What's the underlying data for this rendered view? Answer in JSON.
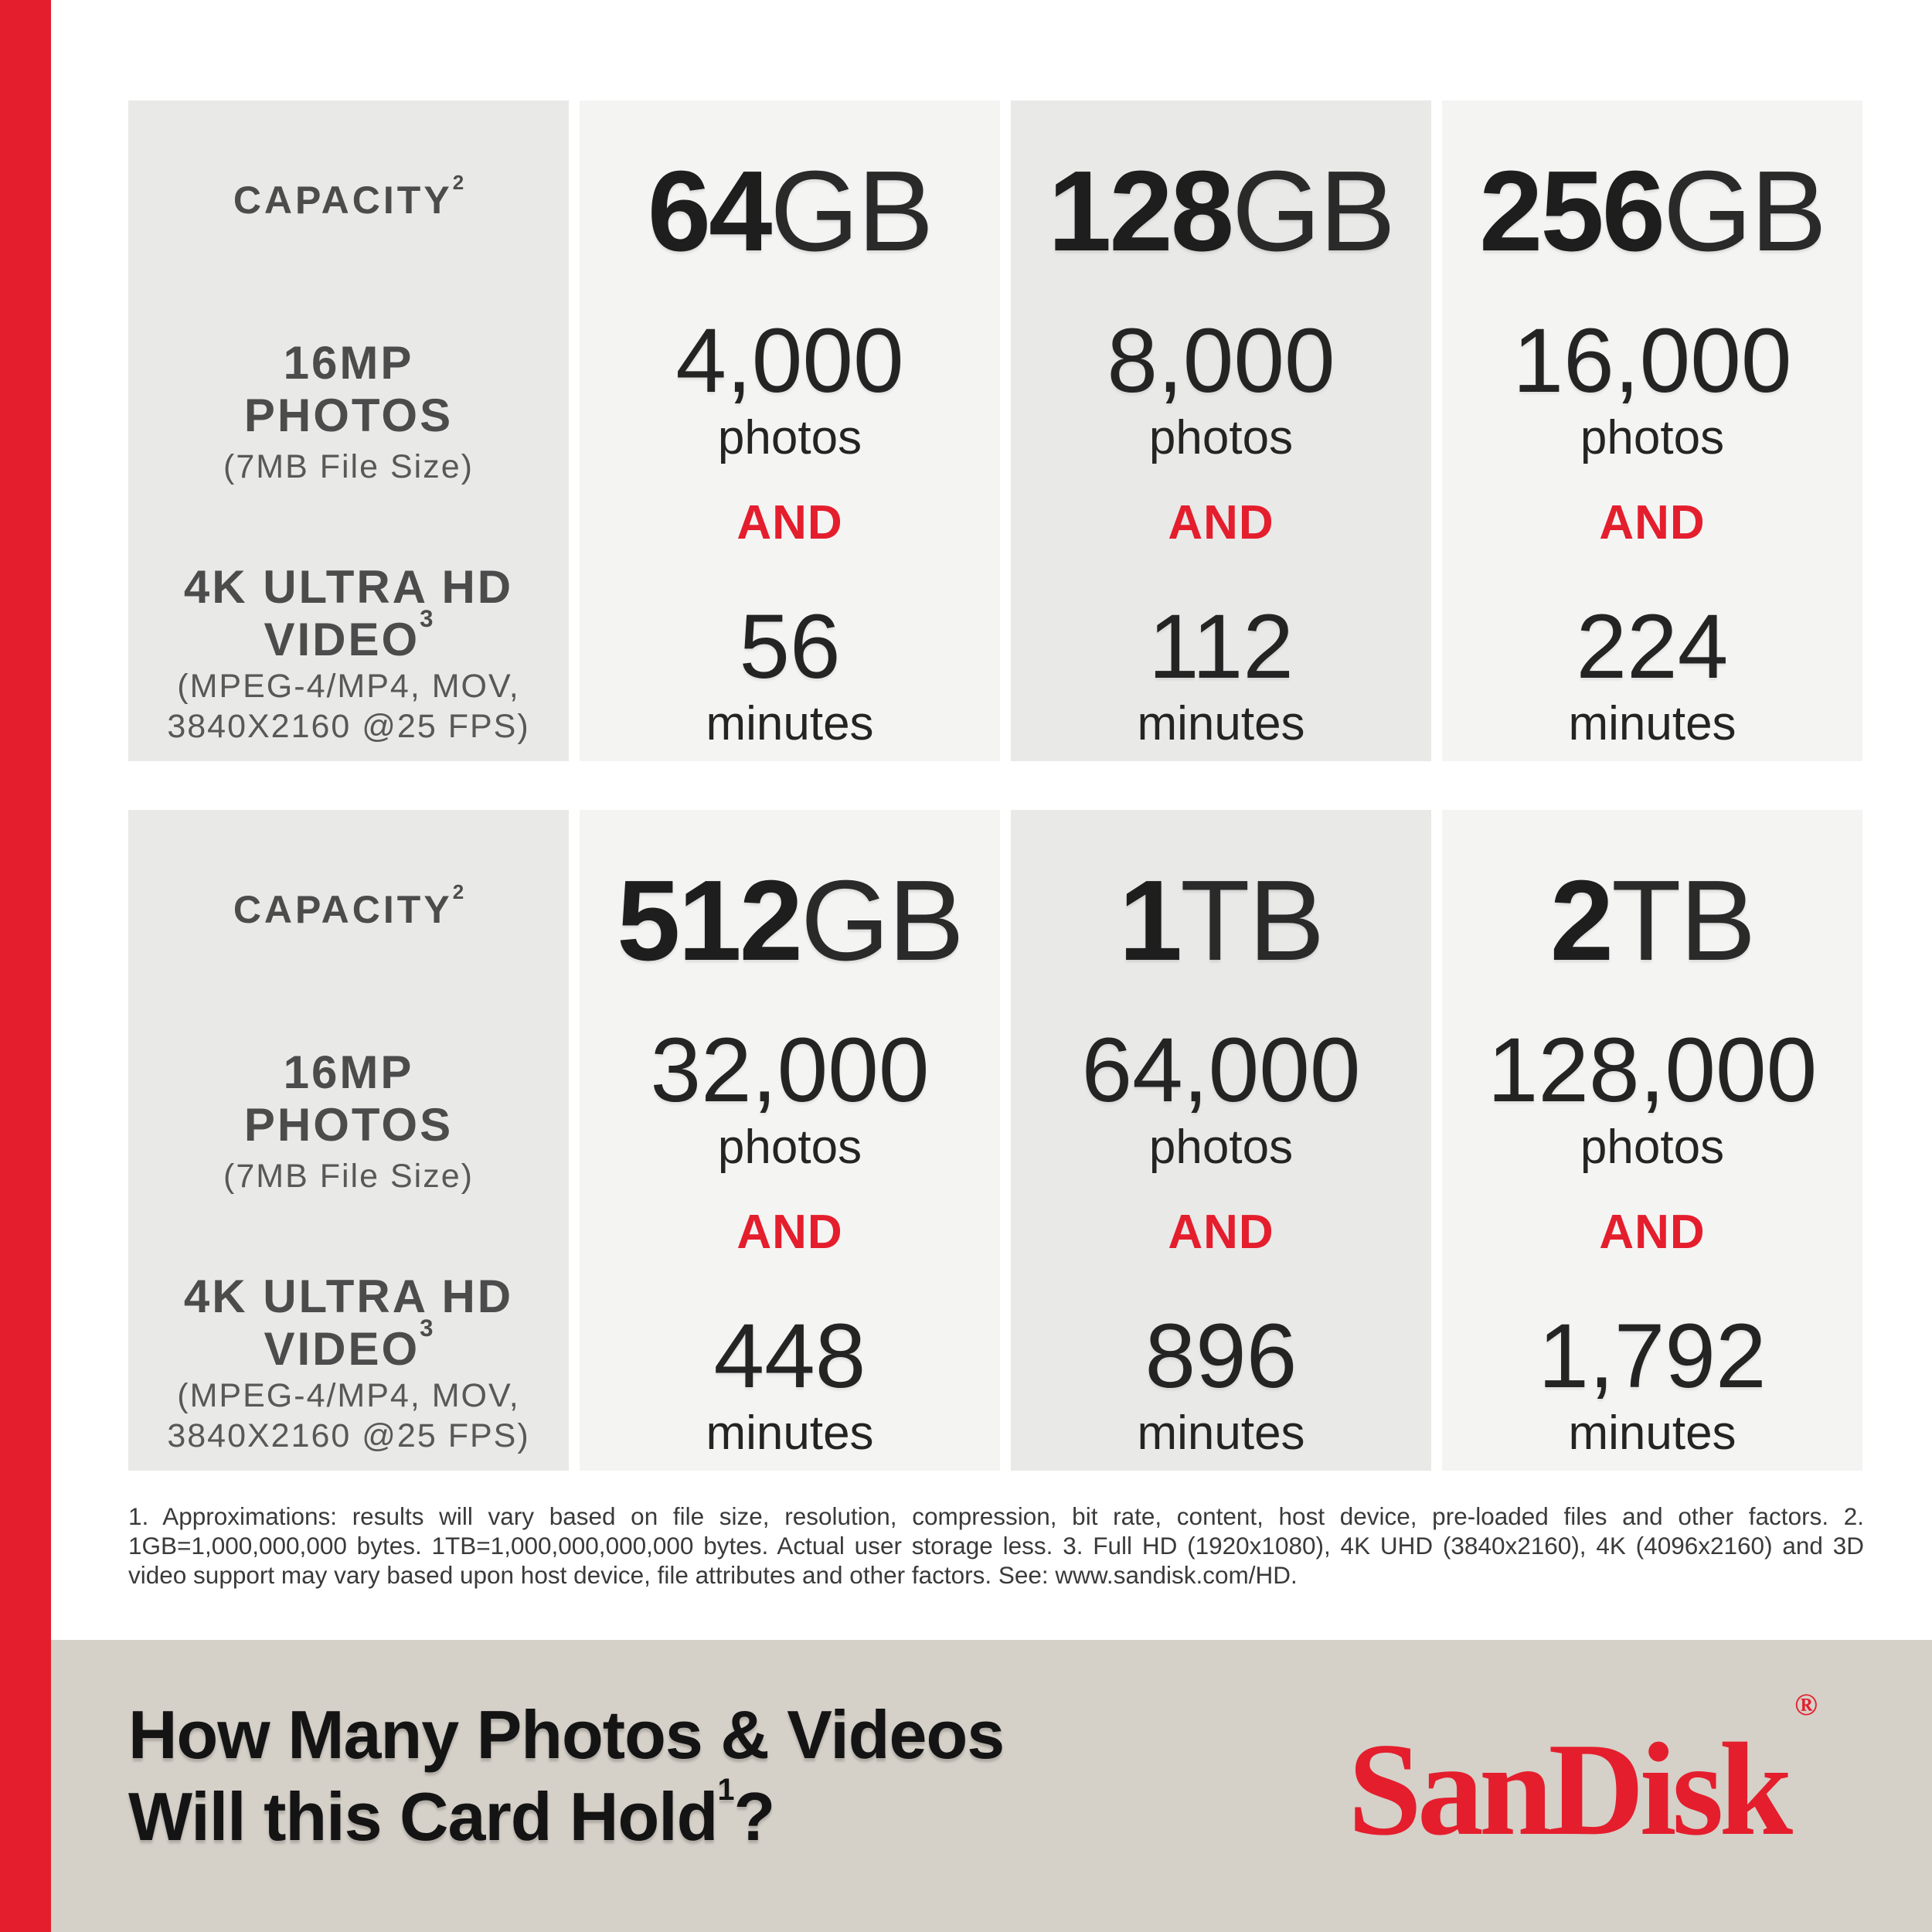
{
  "colors": {
    "accent_red": "#e41e2d",
    "band_bg": "#d5d0c8",
    "cell_dark": "#e9e9e8",
    "cell_light": "#f4f4f3"
  },
  "header_column": {
    "capacity_label": "CAPACITY",
    "capacity_sup": "2",
    "photos_line1": "16MP",
    "photos_line2": "PHOTOS",
    "photos_note": "(7MB File Size)",
    "video_line1": "4K ULTRA HD",
    "video_line2": "VIDEO",
    "video_sup": "3",
    "video_note1": "(MPEG-4/MP4, MOV,",
    "video_note2": "3840X2160 @25 FPS)"
  },
  "tables": [
    {
      "columns": [
        {
          "capacity_value": "64",
          "capacity_unit": "GB",
          "photos_value": "4,000",
          "photos_unit": "photos",
          "and_label": "AND",
          "video_value": "56",
          "video_unit": "minutes"
        },
        {
          "capacity_value": "128",
          "capacity_unit": "GB",
          "photos_value": "8,000",
          "photos_unit": "photos",
          "and_label": "AND",
          "video_value": "112",
          "video_unit": "minutes"
        },
        {
          "capacity_value": "256",
          "capacity_unit": "GB",
          "photos_value": "16,000",
          "photos_unit": "photos",
          "and_label": "AND",
          "video_value": "224",
          "video_unit": "minutes"
        }
      ]
    },
    {
      "columns": [
        {
          "capacity_value": "512",
          "capacity_unit": "GB",
          "photos_value": "32,000",
          "photos_unit": "photos",
          "and_label": "AND",
          "video_value": "448",
          "video_unit": "minutes"
        },
        {
          "capacity_value": "1",
          "capacity_unit": "TB",
          "photos_value": "64,000",
          "photos_unit": "photos",
          "and_label": "AND",
          "video_value": "896",
          "video_unit": "minutes"
        },
        {
          "capacity_value": "2",
          "capacity_unit": "TB",
          "photos_value": "128,000",
          "photos_unit": "photos",
          "and_label": "AND",
          "video_value": "1,792",
          "video_unit": "minutes"
        }
      ]
    }
  ],
  "footnote": {
    "text": "1. Approximations: results will vary based on file size, resolution, compression, bit rate, content, host device, pre-loaded files and other factors. 2. 1GB=1,000,000,000 bytes. 1TB=1,000,000,000,000 bytes. Actual user storage less. 3. Full HD (1920x1080), 4K UHD (3840x2160), 4K (4096x2160) and 3D video support may vary based upon host device, file attributes and other factors. See: www.sandisk.com/HD."
  },
  "footer": {
    "headline_line1": "How Many Photos & Videos",
    "headline_line2": "Will this Card Hold",
    "headline_sup": "1",
    "headline_question": "?",
    "logo_text": "SanDisk",
    "logo_reg": "®"
  },
  "chart_data": {
    "type": "table",
    "title": "How Many Photos & Videos Will this Card Hold?",
    "row_headers": [
      "CAPACITY",
      "16MP PHOTOS (7MB File Size)",
      "4K ULTRA HD VIDEO (MPEG-4/MP4, MOV, 3840X2160 @25 FPS)"
    ],
    "columns": [
      "64GB",
      "128GB",
      "256GB",
      "512GB",
      "1TB",
      "2TB"
    ],
    "series": [
      {
        "name": "16MP photos (7MB file size)",
        "unit": "photos",
        "values": [
          4000,
          8000,
          16000,
          32000,
          64000,
          128000
        ]
      },
      {
        "name": "4K Ultra HD video",
        "unit": "minutes",
        "values": [
          56,
          112,
          224,
          448,
          896,
          1792
        ]
      }
    ]
  }
}
